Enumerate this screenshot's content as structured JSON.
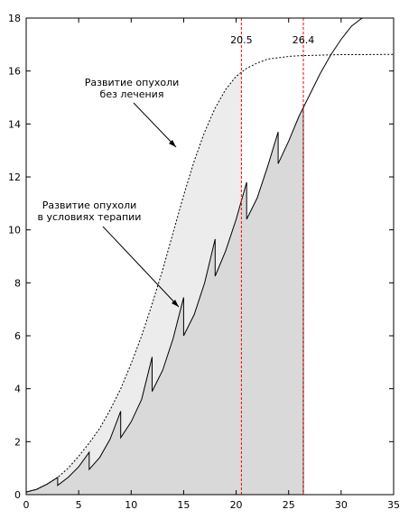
{
  "chart_data": {
    "type": "line",
    "xlim": [
      0,
      35
    ],
    "ylim": [
      0,
      18
    ],
    "x_ticks": [
      0,
      5,
      10,
      15,
      20,
      25,
      30,
      35
    ],
    "y_ticks": [
      0,
      2,
      4,
      6,
      8,
      10,
      12,
      14,
      16,
      18
    ],
    "grid": false,
    "series": [
      {
        "style": "dashed",
        "points": [
          [
            0,
            0.1
          ],
          [
            1,
            0.2
          ],
          [
            2,
            0.4
          ],
          [
            3,
            0.65
          ],
          [
            4,
            1.0
          ],
          [
            5,
            1.45
          ],
          [
            6,
            1.95
          ],
          [
            7,
            2.5
          ],
          [
            8,
            3.2
          ],
          [
            9,
            4.0
          ],
          [
            10,
            4.95
          ],
          [
            11,
            6.0
          ],
          [
            12,
            7.2
          ],
          [
            13,
            8.5
          ],
          [
            14,
            9.9
          ],
          [
            15,
            11.3
          ],
          [
            16,
            12.6
          ],
          [
            17,
            13.7
          ],
          [
            18,
            14.6
          ],
          [
            19,
            15.3
          ],
          [
            20,
            15.8
          ],
          [
            21,
            16.1
          ],
          [
            22,
            16.3
          ],
          [
            23,
            16.45
          ],
          [
            24,
            16.5
          ],
          [
            25,
            16.55
          ],
          [
            26,
            16.58
          ],
          [
            28,
            16.6
          ],
          [
            30,
            16.62
          ],
          [
            32,
            16.62
          ],
          [
            35,
            16.63
          ]
        ]
      },
      {
        "style": "solid",
        "points": [
          [
            0,
            0.1
          ],
          [
            1,
            0.2
          ],
          [
            2,
            0.4
          ],
          [
            3,
            0.65
          ],
          [
            3,
            0.35
          ],
          [
            4,
            0.65
          ],
          [
            5,
            1.05
          ],
          [
            6,
            1.6
          ],
          [
            6,
            0.95
          ],
          [
            7,
            1.4
          ],
          [
            8,
            2.1
          ],
          [
            9,
            3.15
          ],
          [
            9,
            2.15
          ],
          [
            10,
            2.75
          ],
          [
            11,
            3.6
          ],
          [
            12,
            5.2
          ],
          [
            12,
            3.9
          ],
          [
            13,
            4.7
          ],
          [
            14,
            5.9
          ],
          [
            15,
            7.45
          ],
          [
            15,
            6.0
          ],
          [
            16,
            6.8
          ],
          [
            17,
            8.0
          ],
          [
            18,
            9.65
          ],
          [
            18,
            8.25
          ],
          [
            19,
            9.2
          ],
          [
            20,
            10.4
          ],
          [
            21,
            11.8
          ],
          [
            21,
            10.4
          ],
          [
            22,
            11.2
          ],
          [
            23,
            12.4
          ],
          [
            24,
            13.7
          ],
          [
            24,
            12.5
          ],
          [
            25,
            13.35
          ],
          [
            26,
            14.3
          ],
          [
            27,
            15.1
          ],
          [
            28,
            15.9
          ],
          [
            29,
            16.6
          ],
          [
            30,
            17.2
          ],
          [
            31,
            17.7
          ],
          [
            32,
            18.0
          ]
        ]
      }
    ],
    "annotations": {
      "untreated_label": [
        "Развитие опухоли",
        "без лечения"
      ],
      "treated_label": [
        "Развитие опухоли",
        "в условиях терапии"
      ]
    },
    "vlines": [
      {
        "x": 20.5,
        "label": "20.5",
        "color": "#ff0000"
      },
      {
        "x": 26.4,
        "label": "26.4",
        "color": "#ff0000"
      }
    ],
    "fill_untreated_color": "#ececec",
    "fill_treated_color": "#d9d9d9"
  }
}
